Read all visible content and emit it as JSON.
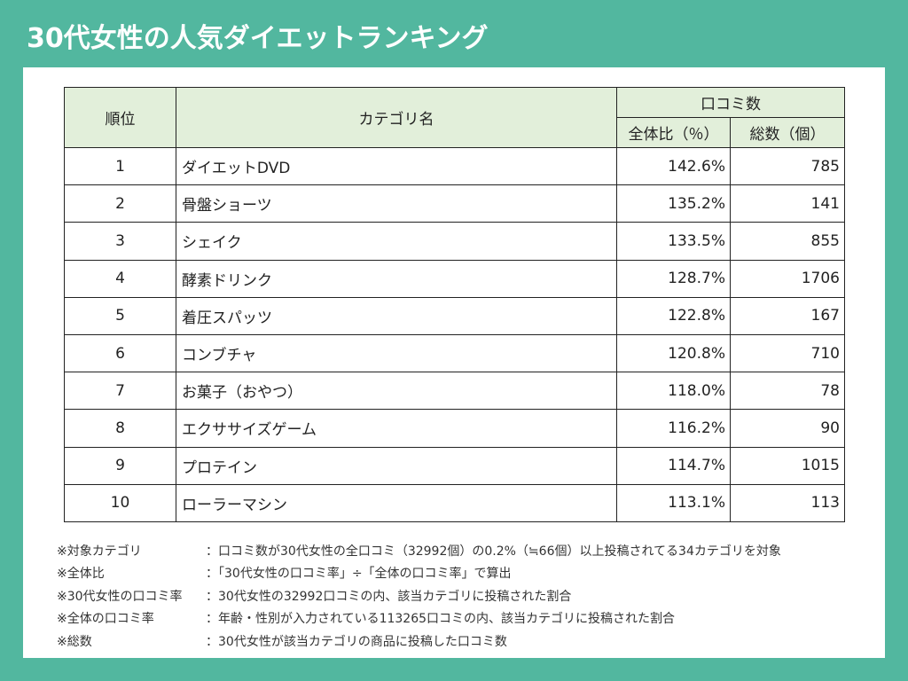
{
  "title": "30代女性の人気ダイエットランキング",
  "table": {
    "headers": {
      "rank": "順位",
      "category": "カテゴリ名",
      "reviews_group": "口コミ数",
      "ratio": "全体比（％）",
      "total": "総数（個）"
    },
    "rows": [
      {
        "rank": "1",
        "category": "ダイエットDVD",
        "ratio": "142.6%",
        "total": "785"
      },
      {
        "rank": "2",
        "category": "骨盤ショーツ",
        "ratio": "135.2%",
        "total": "141"
      },
      {
        "rank": "3",
        "category": "シェイク",
        "ratio": "133.5%",
        "total": "855"
      },
      {
        "rank": "4",
        "category": "酵素ドリンク",
        "ratio": "128.7%",
        "total": "1706"
      },
      {
        "rank": "5",
        "category": "着圧スパッツ",
        "ratio": "122.8%",
        "total": "167"
      },
      {
        "rank": "6",
        "category": "コンブチャ",
        "ratio": "120.8%",
        "total": "710"
      },
      {
        "rank": "7",
        "category": "お菓子（おやつ）",
        "ratio": "118.0%",
        "total": "78"
      },
      {
        "rank": "8",
        "category": "エクササイズゲーム",
        "ratio": "116.2%",
        "total": "90"
      },
      {
        "rank": "9",
        "category": "プロテイン",
        "ratio": "114.7%",
        "total": "1015"
      },
      {
        "rank": "10",
        "category": "ローラーマシン",
        "ratio": "113.1%",
        "total": "113"
      }
    ]
  },
  "notes": [
    {
      "key": "※対象カテゴリ",
      "value": "：口コミ数が30代女性の全口コミ（32992個）の0.2%（≒66個）以上投稿されてる34カテゴリを対象"
    },
    {
      "key": "※全体比",
      "value": "：「30代女性の口コミ率」÷「全体の口コミ率」で算出"
    },
    {
      "key": "※30代女性の口コミ率",
      "value": "：30代女性の32992口コミの内、該当カテゴリに投稿された割合"
    },
    {
      "key": "※全体の口コミ率",
      "value": "：年齢・性別が入力されている113265口コミの内、該当カテゴリに投稿された割合"
    },
    {
      "key": "※総数",
      "value": "：30代女性が該当カテゴリの商品に投稿した口コミ数"
    }
  ]
}
